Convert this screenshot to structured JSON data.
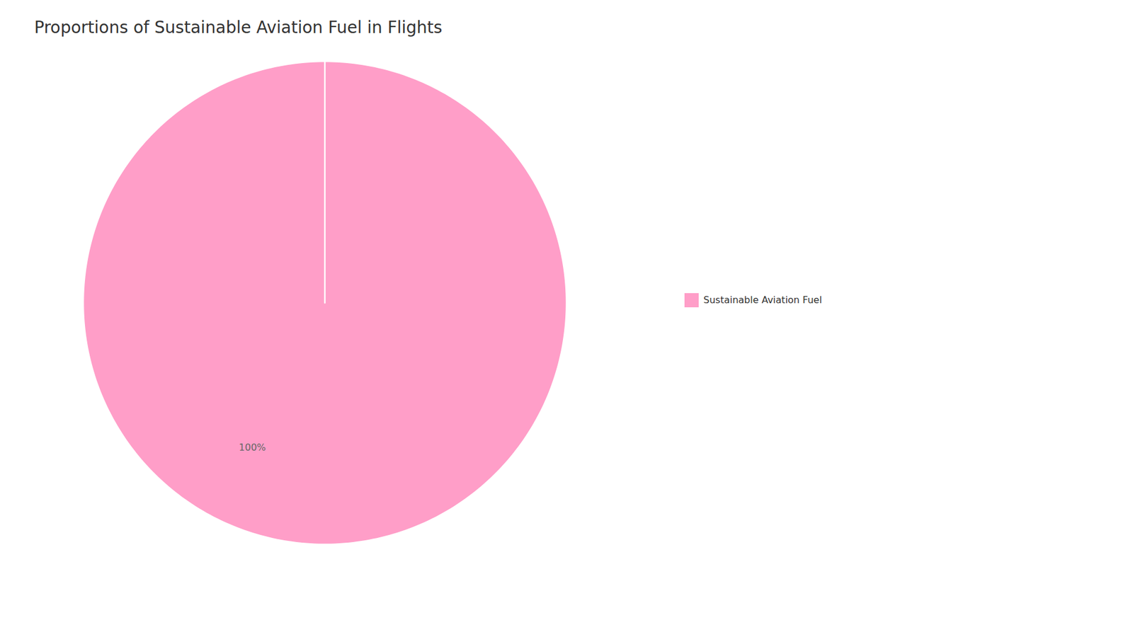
{
  "chart_data": {
    "type": "pie",
    "title": "Proportions of Sustainable Aviation Fuel in Flights",
    "categories": [
      "Sustainable Aviation Fuel"
    ],
    "values": [
      100
    ],
    "value_labels": [
      "100%"
    ],
    "colors": [
      "#FF9EC8"
    ],
    "data_labels": true,
    "legend": "right"
  }
}
